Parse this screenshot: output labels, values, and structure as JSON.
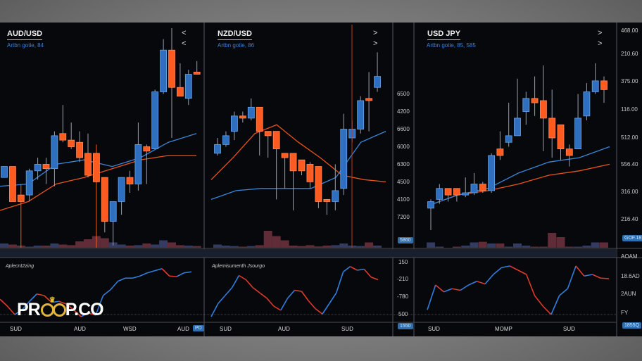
{
  "colors": {
    "up": "#2f6fbf",
    "up_border": "#6aa2e6",
    "down": "#ff5a1f",
    "ma_blue": "#3a86d8",
    "ma_orange": "#e8541e",
    "vol_up": "#3b4470",
    "vol_down": "#6e3341"
  },
  "panels": [
    {
      "title": "AUD/USD",
      "subtitle": "Artbn gotie, 84",
      "chevrons": [
        "<",
        "<"
      ],
      "osc_title": "Aplecnt2zing",
      "x_labels": [
        "SUD",
        "AUD",
        "WSD",
        "AUD"
      ],
      "x_badge": "PD"
    },
    {
      "title": "NZD/USD",
      "subtitle": "Artbn gotie, 86",
      "chevrons": [
        ">",
        ">"
      ],
      "osc_title": "Aplemisumenth Jsourgo",
      "x_labels": [
        "SUD",
        "AUD",
        "SUD"
      ],
      "y_labels": [
        "6500",
        "4200",
        "6600",
        "6000",
        "6300",
        "4500",
        "4100",
        "7200"
      ],
      "y_badge": "5860",
      "osc_y_labels": [
        "150",
        "-210",
        "-780",
        "500"
      ],
      "osc_badge": "1550"
    },
    {
      "title": "USD JPY",
      "subtitle": "Artbn gotie, 85, 585",
      "chevrons": [
        ">",
        ">"
      ],
      "osc_title": "",
      "x_labels": [
        "SUD",
        "MOMP",
        "SUD"
      ],
      "y_labels": [
        "468.00",
        "210.60",
        "375.00",
        "116.00",
        "512.00",
        "556.40",
        "316.00",
        "216.40"
      ],
      "y_badge": "GOF.18",
      "osc_y_labels": [
        "AOAM",
        "18.6AD",
        "2AUN",
        "FY"
      ],
      "osc_badge": "1855Q"
    }
  ],
  "watermark": {
    "left": "PR",
    "right": "P.CO"
  },
  "chart_data": [
    {
      "type": "candlestick",
      "title": "AUD/USD",
      "ylim": [
        0,
        100
      ],
      "ohlc": [
        [
          32,
          37,
          32,
          37
        ],
        [
          37,
          37,
          21,
          21
        ],
        [
          24,
          29,
          0,
          21
        ],
        [
          24,
          36,
          21,
          35
        ],
        [
          35,
          41,
          31,
          38
        ],
        [
          38,
          41,
          29,
          36
        ],
        [
          36,
          53,
          28,
          51
        ],
        [
          52,
          65,
          48,
          49
        ],
        [
          49,
          57,
          45,
          46
        ],
        [
          48,
          53,
          39,
          41
        ],
        [
          43,
          52,
          32,
          33
        ],
        [
          43,
          47,
          0,
          30
        ],
        [
          32,
          32,
          7,
          12
        ],
        [
          12,
          21,
          1,
          21
        ],
        [
          21,
          32,
          15,
          32
        ],
        [
          32,
          35,
          25,
          29
        ],
        [
          29,
          57,
          26,
          47
        ],
        [
          46,
          47,
          29,
          44
        ],
        [
          45,
          72,
          45,
          71
        ],
        [
          71,
          95,
          70,
          90
        ],
        [
          90,
          100,
          50,
          73
        ],
        [
          73,
          84,
          69,
          69
        ],
        [
          68,
          81,
          65,
          79
        ],
        [
          80,
          85,
          79,
          79
        ]
      ],
      "ma_fast": [
        28,
        29,
        38,
        40,
        37,
        41,
        48,
        52
      ],
      "ma_slow": [
        17,
        21,
        29,
        32,
        36,
        40,
        42,
        42
      ],
      "volume": [
        20,
        15,
        10,
        5,
        10,
        10,
        20,
        15,
        12,
        30,
        40,
        55,
        45,
        25,
        15,
        10,
        12,
        20,
        15,
        35,
        25,
        12,
        10,
        8
      ],
      "oscillator": [
        33,
        20,
        4,
        13,
        29,
        43,
        40,
        27,
        29,
        24,
        13,
        0,
        7,
        3,
        40,
        51,
        67,
        73,
        73,
        77,
        83,
        87,
        91,
        77,
        76,
        83,
        85
      ]
    },
    {
      "type": "candlestick",
      "title": "NZD/USD",
      "ylim": [
        0,
        100
      ],
      "ohlc": [
        [
          43,
          50,
          42,
          47
        ],
        [
          47,
          53,
          46,
          51
        ],
        [
          53,
          62,
          49,
          60
        ],
        [
          60,
          62,
          57,
          59
        ],
        [
          59,
          68,
          58,
          64
        ],
        [
          64,
          64,
          42,
          53
        ],
        [
          53,
          53,
          41,
          51
        ],
        [
          53,
          53,
          22,
          45
        ],
        [
          43,
          43,
          27,
          41
        ],
        [
          43,
          43,
          17,
          35
        ],
        [
          40,
          40,
          33,
          35
        ],
        [
          38,
          39,
          27,
          30
        ],
        [
          37,
          37,
          18,
          21
        ],
        [
          22,
          22,
          15,
          21
        ],
        [
          21,
          38,
          17,
          26
        ],
        [
          27,
          61,
          24,
          54
        ],
        [
          50,
          58,
          48,
          54
        ],
        [
          54,
          69,
          52,
          67
        ],
        [
          68,
          80,
          53,
          67
        ],
        [
          73,
          89,
          71,
          78
        ]
      ],
      "ma_fast": [
        22,
        26,
        27,
        27,
        27,
        32,
        48,
        53
      ],
      "ma_slow": [
        31,
        41,
        52,
        56,
        48,
        41,
        33,
        31,
        30
      ],
      "volume": [
        15,
        10,
        8,
        5,
        8,
        12,
        80,
        55,
        35,
        10,
        8,
        12,
        6,
        10,
        12,
        20,
        10,
        8,
        25,
        10
      ],
      "oscillator": [
        0,
        25,
        40,
        55,
        78,
        70,
        55,
        45,
        35,
        20,
        12,
        35,
        50,
        48,
        30,
        15,
        5,
        25,
        45,
        85,
        95,
        88,
        90,
        75,
        70
      ]
    },
    {
      "type": "candlestick",
      "title": "USD JPY",
      "ylim": [
        0,
        100
      ],
      "ohlc": [
        [
          18,
          22,
          8,
          21
        ],
        [
          22,
          29,
          20,
          27
        ],
        [
          27,
          27,
          21,
          24
        ],
        [
          27,
          27,
          21,
          24
        ],
        [
          24,
          32,
          23,
          25
        ],
        [
          25,
          34,
          24,
          29
        ],
        [
          29,
          30,
          25,
          26
        ],
        [
          26,
          43,
          25,
          42
        ],
        [
          45,
          53,
          40,
          42
        ],
        [
          48,
          66,
          46,
          51
        ],
        [
          51,
          77,
          51,
          59
        ],
        [
          62,
          71,
          56,
          68
        ],
        [
          68,
          78,
          60,
          66
        ],
        [
          67,
          83,
          44,
          59
        ],
        [
          59,
          72,
          41,
          50
        ],
        [
          56,
          56,
          40,
          45
        ],
        [
          45,
          47,
          37,
          42
        ],
        [
          45,
          70,
          45,
          59
        ],
        [
          60,
          75,
          58,
          71
        ],
        [
          71,
          84,
          70,
          76
        ],
        [
          76,
          78,
          66,
          72
        ]
      ],
      "ma_fast": [
        19,
        24,
        27,
        34,
        39,
        41,
        46
      ],
      "ma_slow": [
        19,
        24,
        26,
        29,
        33,
        35,
        38
      ],
      "volume": [
        25,
        5,
        0,
        5,
        10,
        25,
        28,
        20,
        20,
        5,
        20,
        10,
        5,
        5,
        70,
        50,
        5,
        5,
        10,
        25,
        25
      ],
      "oscillator": [
        13,
        60,
        47,
        53,
        50,
        60,
        67,
        62,
        80,
        93,
        96,
        88,
        80,
        40,
        20,
        4,
        40,
        53,
        96,
        77,
        80,
        73,
        72
      ]
    }
  ]
}
